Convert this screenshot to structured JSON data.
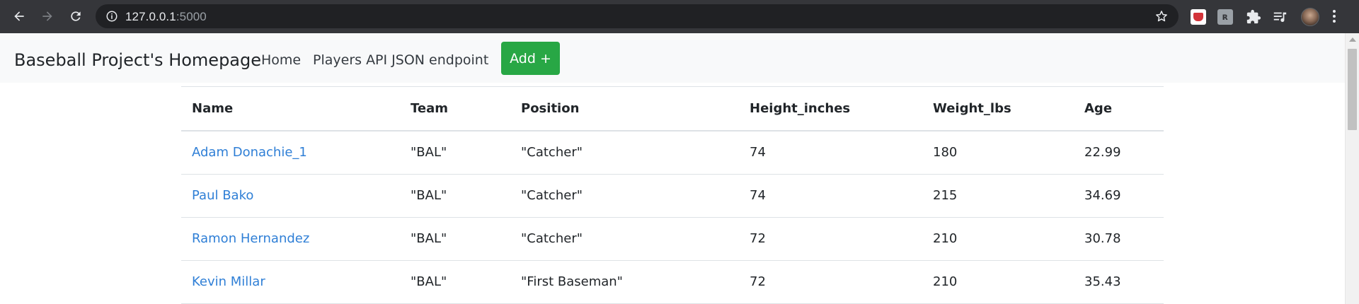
{
  "browser": {
    "url_host": "127.0.0.1",
    "url_port": ":5000"
  },
  "navbar": {
    "brand": "Baseball Project's Homepage",
    "links": [
      {
        "label": "Home"
      },
      {
        "label": "Players API JSON endpoint"
      }
    ],
    "add_button": "Add +"
  },
  "table": {
    "headers": [
      "Name",
      "Team",
      "Position",
      "Height_inches",
      "Weight_lbs",
      "Age"
    ],
    "rows": [
      {
        "name": "Adam Donachie_1",
        "team": "\"BAL\"",
        "position": "\"Catcher\"",
        "height": "74",
        "weight": "180",
        "age": "22.99"
      },
      {
        "name": "Paul Bako",
        "team": "\"BAL\"",
        "position": "\"Catcher\"",
        "height": "74",
        "weight": "215",
        "age": "34.69"
      },
      {
        "name": "Ramon Hernandez",
        "team": "\"BAL\"",
        "position": "\"Catcher\"",
        "height": "72",
        "weight": "210",
        "age": "30.78"
      },
      {
        "name": "Kevin Millar",
        "team": "\"BAL\"",
        "position": "\"First Baseman\"",
        "height": "72",
        "weight": "210",
        "age": "35.43"
      }
    ]
  },
  "colors": {
    "chrome_bg": "#35363a",
    "omnibox_bg": "#202124",
    "navbar_bg": "#f8f9fa",
    "add_button": "#28a745",
    "link": "#2f7fd6"
  }
}
